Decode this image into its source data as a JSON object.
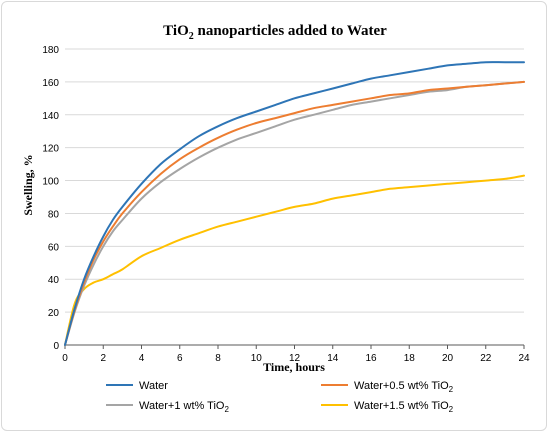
{
  "chart_data": {
    "type": "line",
    "title_main": "TiO",
    "title_sub": "2",
    "title_rest": " nanoparticles added to Water",
    "xlabel": "Time, hours",
    "ylabel": "Swelling, %",
    "xlim": [
      0,
      24
    ],
    "ylim": [
      0,
      180
    ],
    "xticks": [
      0,
      2,
      4,
      6,
      8,
      10,
      12,
      14,
      16,
      18,
      20,
      22,
      24
    ],
    "yticks": [
      0,
      20,
      40,
      60,
      80,
      100,
      120,
      140,
      160,
      180
    ],
    "grid": "horizontal",
    "legend": "bottom",
    "series": [
      {
        "name": "Water",
        "legend_main": "Water",
        "legend_sub": "",
        "color": "#2e75b6",
        "x": [
          0,
          0.5,
          1,
          1.5,
          2,
          2.5,
          3,
          4,
          5,
          6,
          7,
          8,
          9,
          10,
          11,
          12,
          13,
          14,
          15,
          16,
          17,
          18,
          19,
          20,
          21,
          22,
          23,
          24
        ],
        "y": [
          0,
          22,
          40,
          54,
          66,
          76,
          84,
          98,
          110,
          119,
          127,
          133,
          138,
          142,
          146,
          150,
          153,
          156,
          159,
          162,
          164,
          166,
          168,
          170,
          171,
          172,
          172,
          172
        ]
      },
      {
        "name": "Water+0.5 wt% TiO2",
        "legend_main": "Water+0.5 wt% TiO",
        "legend_sub": "2",
        "color": "#ed7d31",
        "x": [
          0,
          0.5,
          1,
          1.5,
          2,
          2.5,
          3,
          4,
          5,
          6,
          7,
          8,
          9,
          10,
          11,
          12,
          13,
          14,
          15,
          16,
          17,
          18,
          19,
          20,
          21,
          22,
          23,
          24
        ],
        "y": [
          0,
          21,
          38,
          52,
          63,
          72,
          80,
          93,
          104,
          113,
          120,
          126,
          131,
          135,
          138,
          141,
          144,
          146,
          148,
          150,
          152,
          153,
          155,
          156,
          157,
          158,
          159,
          160
        ]
      },
      {
        "name": "Water+1 wt% TiO2",
        "legend_main": "Water+1 wt% TiO",
        "legend_sub": "2",
        "color": "#a5a5a5",
        "x": [
          0,
          0.5,
          1,
          1.5,
          2,
          2.5,
          3,
          4,
          5,
          6,
          7,
          8,
          9,
          10,
          11,
          12,
          13,
          14,
          15,
          16,
          17,
          18,
          19,
          20,
          21,
          22,
          23,
          24
        ],
        "y": [
          0,
          20,
          36,
          49,
          60,
          69,
          76,
          89,
          99,
          107,
          114,
          120,
          125,
          129,
          133,
          137,
          140,
          143,
          146,
          148,
          150,
          152,
          154,
          155,
          157,
          158,
          159,
          160
        ]
      },
      {
        "name": "Water+1.5 wt% TiO2",
        "legend_main": "Water+1.5 wt% TiO",
        "legend_sub": "2",
        "color": "#ffc000",
        "x": [
          0,
          0.5,
          1,
          1.5,
          2,
          2.5,
          3,
          4,
          5,
          6,
          7,
          8,
          9,
          10,
          11,
          12,
          13,
          14,
          15,
          16,
          17,
          18,
          19,
          20,
          21,
          22,
          23,
          24
        ],
        "y": [
          0,
          25,
          34,
          38,
          40,
          43,
          46,
          54,
          59,
          64,
          68,
          72,
          75,
          78,
          81,
          84,
          86,
          89,
          91,
          93,
          95,
          96,
          97,
          98,
          99,
          100,
          101,
          103
        ]
      }
    ]
  }
}
